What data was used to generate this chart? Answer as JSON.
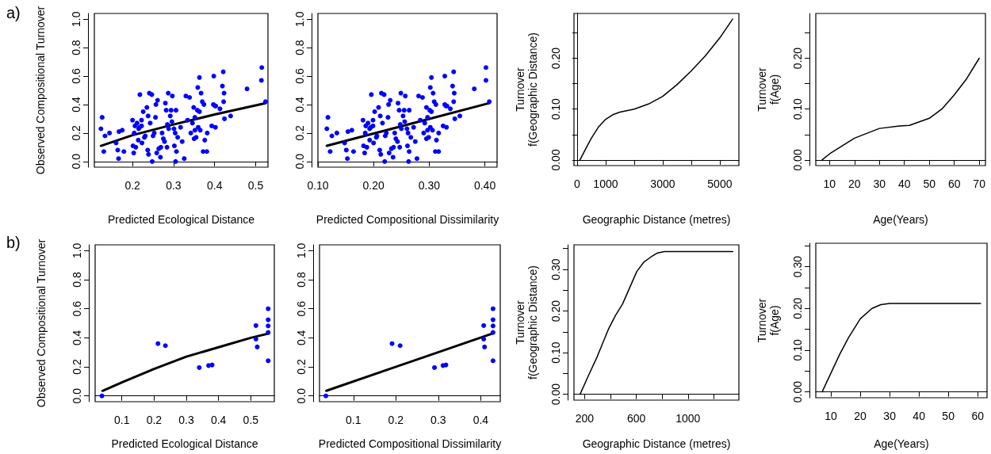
{
  "chart_data": [
    {
      "type": "scatter",
      "annotations": [
        "a)"
      ],
      "xlabel": "Predicted Ecological Distance",
      "ylabel": "Observed Compositional Turnover",
      "marker": "circle",
      "xlim": [
        0.107,
        0.53
      ],
      "ylim": [
        -0.04,
        1.04
      ],
      "xticks": [
        0.2,
        0.3,
        0.4,
        0.5
      ],
      "yticks": [
        {
          "value": 0,
          "label": "0.0"
        },
        0.2,
        0.4,
        0.6,
        0.8,
        {
          "value": 1,
          "label": "1.0"
        }
      ],
      "series": [
        {
          "color": "#0000ff",
          "x": [
            0.123,
            0.126,
            0.13,
            0.133,
            0.144,
            0.16,
            0.164,
            0.166,
            0.167,
            0.175,
            0.179,
            0.2,
            0.201,
            0.203,
            0.204,
            0.206,
            0.208,
            0.211,
            0.214,
            0.215,
            0.217,
            0.218,
            0.222,
            0.222,
            0.223,
            0.226,
            0.229,
            0.231,
            0.235,
            0.237,
            0.238,
            0.239,
            0.241,
            0.243,
            0.247,
            0.248,
            0.25,
            0.253,
            0.256,
            0.257,
            0.259,
            0.261,
            0.264,
            0.268,
            0.269,
            0.272,
            0.275,
            0.278,
            0.28,
            0.282,
            0.284,
            0.285,
            0.287,
            0.288,
            0.292,
            0.294,
            0.296,
            0.297,
            0.301,
            0.302,
            0.304,
            0.305,
            0.306,
            0.307,
            0.31,
            0.317,
            0.321,
            0.326,
            0.33,
            0.334,
            0.339,
            0.342,
            0.346,
            0.349,
            0.35,
            0.352,
            0.352,
            0.355,
            0.358,
            0.359,
            0.36,
            0.363,
            0.363,
            0.365,
            0.367,
            0.37,
            0.372,
            0.374,
            0.376,
            0.381,
            0.382,
            0.393,
            0.397,
            0.398,
            0.401,
            0.402,
            0.403,
            0.413,
            0.419,
            0.421,
            0.422,
            0.423,
            0.424,
            0.439,
            0.479,
            0.514,
            0.515,
            0.524
          ],
          "values": [
            0.23,
            0.31,
            0.07,
            0.18,
            0.2,
            0.13,
            0.08,
            0.02,
            0.21,
            0.22,
            0.07,
            0.29,
            0.11,
            0.06,
            0.2,
            0.25,
            0.1,
            0.27,
            0.15,
            0.23,
            0.24,
            0.47,
            0.25,
            0.29,
            0.13,
            0.35,
            0.17,
            0.18,
            0.38,
            0.08,
            0.32,
            0.05,
            0.48,
            0.27,
            0.47,
            0.0,
            0.18,
            0.2,
            0.31,
            0.4,
            0.06,
            0.43,
            0.09,
            0.03,
            0.1,
            0.2,
            0.16,
            0.14,
            0.41,
            0.36,
            0.1,
            0.26,
            0.48,
            0.23,
            0.32,
            0.36,
            0.28,
            0.46,
            0.23,
            0.11,
            0.2,
            0.0,
            0.36,
            0.07,
            0.17,
            0.24,
            0.14,
            0.02,
            0.46,
            0.29,
            0.45,
            0.2,
            0.27,
            0.38,
            0.16,
            0.31,
            0.22,
            0.17,
            0.36,
            0.52,
            0.24,
            0.59,
            0.35,
            0.22,
            0.48,
            0.42,
            0.07,
            0.4,
            0.15,
            0.07,
            0.2,
            0.25,
            0.4,
            0.6,
            0.39,
            0.24,
            0.39,
            0.37,
            0.53,
            0.63,
            0.42,
            0.48,
            0.3,
            0.32,
            0.51,
            0.57,
            0.66,
            0.42
          ]
        },
        {
          "type": "line",
          "color": "#000000",
          "marker": "none",
          "x": [
            0.123,
            0.2,
            0.3,
            0.4,
            0.524
          ],
          "values": [
            0.11,
            0.185,
            0.26,
            0.33,
            0.41
          ]
        }
      ]
    },
    {
      "type": "scatter",
      "xlabel": "Predicted Compositional Dissimilarity",
      "marker": "circle",
      "xlim": [
        0.1,
        0.422
      ],
      "ylim": [
        -0.04,
        1.04
      ],
      "xticks": [
        {
          "value": 0.1,
          "label": "0.10"
        },
        {
          "value": 0.2,
          "label": "0.20"
        },
        {
          "value": 0.3,
          "label": "0.30"
        },
        {
          "value": 0.4,
          "label": "0.40"
        }
      ],
      "yticks": [
        {
          "value": 0,
          "label": "0.0"
        },
        0.2,
        0.4,
        0.6,
        0.8,
        {
          "value": 1,
          "label": "1.0"
        }
      ],
      "series": [
        {
          "color": "#0000ff",
          "x": [
            0.116,
            0.118,
            0.122,
            0.125,
            0.134,
            0.148,
            0.151,
            0.153,
            0.154,
            0.161,
            0.164,
            0.181,
            0.182,
            0.184,
            0.185,
            0.186,
            0.188,
            0.19,
            0.193,
            0.193,
            0.195,
            0.196,
            0.199,
            0.199,
            0.2,
            0.202,
            0.205,
            0.206,
            0.209,
            0.211,
            0.212,
            0.213,
            0.214,
            0.216,
            0.219,
            0.22,
            0.221,
            0.223,
            0.226,
            0.227,
            0.228,
            0.23,
            0.232,
            0.235,
            0.236,
            0.238,
            0.24,
            0.243,
            0.244,
            0.246,
            0.247,
            0.248,
            0.249,
            0.25,
            0.253,
            0.255,
            0.256,
            0.257,
            0.26,
            0.261,
            0.262,
            0.263,
            0.264,
            0.264,
            0.267,
            0.272,
            0.275,
            0.278,
            0.281,
            0.284,
            0.288,
            0.29,
            0.292,
            0.295,
            0.295,
            0.297,
            0.297,
            0.299,
            0.301,
            0.302,
            0.302,
            0.304,
            0.304,
            0.306,
            0.307,
            0.309,
            0.311,
            0.312,
            0.313,
            0.317,
            0.317,
            0.325,
            0.328,
            0.328,
            0.33,
            0.331,
            0.332,
            0.338,
            0.342,
            0.344,
            0.344,
            0.345,
            0.346,
            0.355,
            0.381,
            0.402,
            0.402,
            0.408
          ],
          "values": [
            0.23,
            0.31,
            0.07,
            0.18,
            0.2,
            0.13,
            0.08,
            0.02,
            0.21,
            0.22,
            0.07,
            0.29,
            0.11,
            0.06,
            0.2,
            0.25,
            0.1,
            0.27,
            0.15,
            0.23,
            0.24,
            0.47,
            0.25,
            0.29,
            0.13,
            0.35,
            0.17,
            0.18,
            0.38,
            0.08,
            0.32,
            0.05,
            0.48,
            0.27,
            0.47,
            0.0,
            0.18,
            0.2,
            0.31,
            0.4,
            0.06,
            0.43,
            0.09,
            0.03,
            0.1,
            0.2,
            0.16,
            0.14,
            0.41,
            0.36,
            0.1,
            0.26,
            0.48,
            0.23,
            0.32,
            0.36,
            0.28,
            0.46,
            0.23,
            0.11,
            0.2,
            0.0,
            0.36,
            0.07,
            0.17,
            0.24,
            0.14,
            0.02,
            0.46,
            0.29,
            0.45,
            0.2,
            0.27,
            0.38,
            0.16,
            0.31,
            0.22,
            0.17,
            0.36,
            0.52,
            0.24,
            0.59,
            0.35,
            0.22,
            0.48,
            0.42,
            0.07,
            0.4,
            0.15,
            0.07,
            0.2,
            0.25,
            0.4,
            0.6,
            0.39,
            0.24,
            0.39,
            0.37,
            0.53,
            0.63,
            0.42,
            0.48,
            0.3,
            0.32,
            0.51,
            0.57,
            0.66,
            0.42
          ]
        },
        {
          "type": "line",
          "color": "#000000",
          "marker": "none",
          "x": [
            0.116,
            0.408
          ],
          "values": [
            0.11,
            0.41
          ]
        }
      ]
    },
    {
      "type": "line",
      "xlabel": "Geographic Distance (metres)",
      "ylabel": "Turnover\nf(Geographic Distance)",
      "xlim": [
        -110,
        5670
      ],
      "ylim": [
        -0.011,
        0.288
      ],
      "xticks": [
        0,
        1000,
        {
          "value": 2000,
          "label": null
        },
        3000,
        {
          "value": 4000,
          "label": null
        },
        5000
      ],
      "yticks": [
        {
          "value": 0,
          "label": "0.00"
        },
        {
          "value": 0.05,
          "label": null
        },
        {
          "value": 0.1,
          "label": "0.10"
        },
        {
          "value": 0.15,
          "label": null
        },
        {
          "value": 0.2,
          "label": "0.20"
        },
        {
          "value": 0.25,
          "label": null
        }
      ],
      "series": [
        {
          "color": "#000000",
          "x": [
            100,
            300,
            500,
            750,
            1000,
            1250,
            1500,
            2000,
            2500,
            3000,
            3500,
            4000,
            4500,
            5000,
            5450
          ],
          "values": [
            0,
            0.022,
            0.043,
            0.065,
            0.08,
            0.089,
            0.094,
            0.1,
            0.11,
            0.125,
            0.148,
            0.175,
            0.205,
            0.24,
            0.277
          ]
        }
      ]
    },
    {
      "type": "line",
      "xlabel": "Age(Years)",
      "ylabel": "Turnover\nf(Age)",
      "xlim": [
        4.5,
        72.5
      ],
      "ylim": [
        -0.011,
        0.288
      ],
      "xticks": [
        10,
        20,
        30,
        40,
        50,
        60,
        70
      ],
      "yticks": [
        {
          "value": 0,
          "label": "0.00"
        },
        {
          "value": 0.05,
          "label": null
        },
        {
          "value": 0.1,
          "label": "0.10"
        },
        {
          "value": 0.15,
          "label": null
        },
        {
          "value": 0.2,
          "label": "0.20"
        },
        {
          "value": 0.25,
          "label": null
        }
      ],
      "series": [
        {
          "color": "#000000",
          "x": [
            7,
            10,
            20,
            30,
            38,
            42,
            50,
            55,
            60,
            65,
            70
          ],
          "values": [
            0,
            0.012,
            0.043,
            0.062,
            0.067,
            0.068,
            0.082,
            0.1,
            0.128,
            0.16,
            0.2
          ]
        }
      ]
    },
    {
      "type": "scatter",
      "annotations": [
        "b)"
      ],
      "xlabel": "Predicted Ecological Distance",
      "ylabel": "Observed Compositional Turnover",
      "marker": "circle",
      "xlim": [
        0.017,
        0.573
      ],
      "ylim": [
        -0.04,
        1.04
      ],
      "xticks": [
        0.1,
        0.2,
        0.3,
        0.4,
        0.5
      ],
      "yticks": [
        {
          "value": 0,
          "label": "0.0"
        },
        0.2,
        0.4,
        0.6,
        0.8,
        {
          "value": 1,
          "label": "1.0"
        }
      ],
      "series": [
        {
          "color": "#0000ff",
          "x": [
            0.038,
            0.212,
            0.235,
            0.34,
            0.369,
            0.38,
            0.516,
            0.516,
            0.52,
            0.554,
            0.554,
            0.554,
            0.554,
            0.554
          ],
          "values": [
            0,
            0.36,
            0.346,
            0.195,
            0.209,
            0.213,
            0.484,
            0.391,
            0.337,
            0.6,
            0.524,
            0.482,
            0.437,
            0.242
          ]
        },
        {
          "type": "line",
          "color": "#000000",
          "marker": "none",
          "x": [
            0.04,
            0.1,
            0.2,
            0.3,
            0.4,
            0.5,
            0.556
          ],
          "values": [
            0.035,
            0.093,
            0.186,
            0.27,
            0.335,
            0.4,
            0.43
          ]
        }
      ]
    },
    {
      "type": "scatter",
      "xlabel": "Predicted Compositional Dissimilarity",
      "marker": "circle",
      "xlim": [
        0.02,
        0.446
      ],
      "ylim": [
        -0.04,
        1.04
      ],
      "xticks": [
        0.1,
        0.2,
        0.3,
        0.4
      ],
      "yticks": [
        {
          "value": 0,
          "label": "0.0"
        },
        0.2,
        0.4,
        0.6,
        0.8,
        {
          "value": 1,
          "label": "1.0"
        }
      ],
      "series": [
        {
          "color": "#0000ff",
          "x": [
            0.035,
            0.191,
            0.21,
            0.291,
            0.311,
            0.318,
            0.407,
            0.407,
            0.409,
            0.429,
            0.429,
            0.429,
            0.429,
            0.429
          ],
          "values": [
            0,
            0.36,
            0.346,
            0.195,
            0.209,
            0.213,
            0.484,
            0.391,
            0.337,
            0.6,
            0.524,
            0.482,
            0.437,
            0.242
          ]
        },
        {
          "type": "line",
          "color": "#000000",
          "marker": "none",
          "x": [
            0.036,
            0.428
          ],
          "values": [
            0.035,
            0.43
          ]
        }
      ]
    },
    {
      "type": "line",
      "xlabel": "Geographic Distance (metres)",
      "ylabel": "Turnover\nf(Geographic Distance)",
      "xlim": [
        118,
        1394
      ],
      "ylim": [
        -0.014,
        0.359
      ],
      "xticks": [
        200,
        {
          "value": 400,
          "label": null
        },
        600,
        {
          "value": 800,
          "label": null
        },
        1000,
        {
          "value": 1200,
          "label": null
        }
      ],
      "yticks": [
        {
          "value": 0,
          "label": "0.00"
        },
        {
          "value": 0.05,
          "label": null
        },
        {
          "value": 0.1,
          "label": "0.10"
        },
        {
          "value": 0.15,
          "label": null
        },
        {
          "value": 0.2,
          "label": "0.20"
        },
        {
          "value": 0.25,
          "label": null
        },
        {
          "value": 0.3,
          "label": "0.30"
        },
        {
          "value": 0.35,
          "label": null
        }
      ],
      "series": [
        {
          "color": "#000000",
          "x": [
            165,
            230,
            297,
            384,
            440,
            494,
            604,
            660,
            714,
            760,
            817,
            1347
          ],
          "values": [
            0,
            0.045,
            0.09,
            0.156,
            0.19,
            0.217,
            0.295,
            0.318,
            0.33,
            0.339,
            0.343,
            0.343
          ]
        }
      ]
    },
    {
      "type": "line",
      "xlabel": "Age(Years)",
      "ylabel": "Turnover\nf(Age)",
      "xlim": [
        4.84,
        63.2
      ],
      "ylim": [
        -0.014,
        0.356
      ],
      "xticks": [
        10,
        20,
        30,
        40,
        50,
        60
      ],
      "yticks": [
        {
          "value": 0,
          "label": "0.00"
        },
        {
          "value": 0.05,
          "label": null
        },
        {
          "value": 0.1,
          "label": "0.10"
        },
        {
          "value": 0.15,
          "label": null
        },
        {
          "value": 0.2,
          "label": "0.20"
        },
        {
          "value": 0.25,
          "label": null
        },
        {
          "value": 0.3,
          "label": "0.30"
        },
        {
          "value": 0.35,
          "label": null
        }
      ],
      "series": [
        {
          "color": "#000000",
          "x": [
            7,
            10,
            13,
            16,
            20,
            24,
            27,
            30,
            61
          ],
          "values": [
            0,
            0.045,
            0.09,
            0.13,
            0.175,
            0.2,
            0.209,
            0.212,
            0.212
          ]
        }
      ]
    }
  ]
}
